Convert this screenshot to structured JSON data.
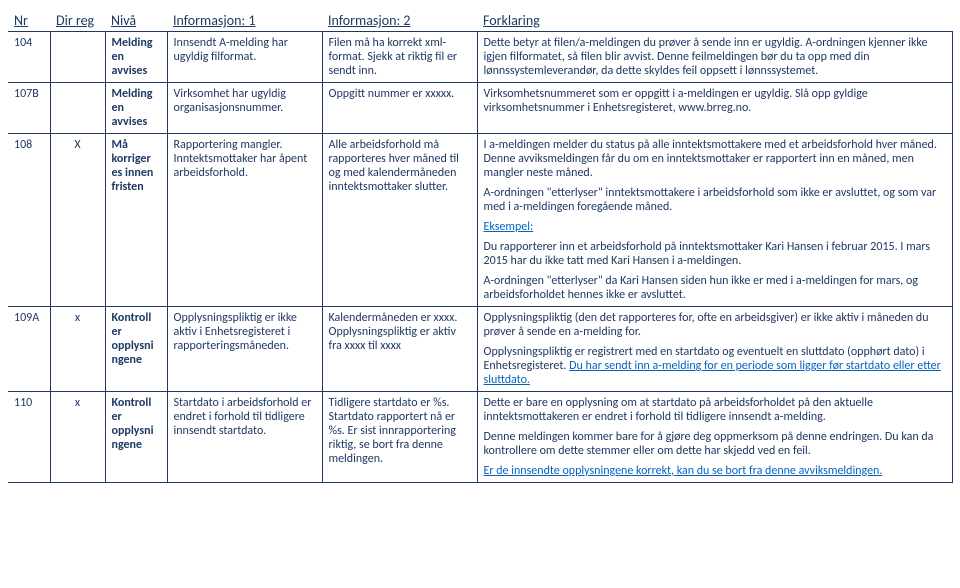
{
  "colors": {
    "text": "#1f3864",
    "border": "#1f3864",
    "accent": "#0563c1",
    "background": "#ffffff"
  },
  "typography": {
    "font_family": "Calibri, Arial, sans-serif",
    "body_size_pt": 9,
    "header_size_pt": 11
  },
  "headers": {
    "nr": "Nr",
    "dir_reg": "Dir reg",
    "niva": "Nivå",
    "info1": "Informasjon: 1",
    "info2": "Informasjon: 2",
    "forklaring": "Forklaring"
  },
  "rows": [
    {
      "nr": "104",
      "dir_reg": "",
      "niva": "Melding en avvises",
      "info1": "Innsendt A-melding har ugyldig filformat.",
      "info2": "Filen må ha korrekt xml-format. Sjekk at riktig fil er sendt inn.",
      "forklaring": [
        "Dette betyr at filen/a-meldingen du prøver å sende inn er ugyldig. A-ordningen kjenner ikke igjen filformatet, så filen blir avvist. Denne feilmeldingen bør du ta opp med din lønnssystemleverandør, da dette skyldes feil oppsett i lønnssystemet."
      ]
    },
    {
      "nr": "107B",
      "dir_reg": "",
      "niva": "Melding en avvises",
      "info1": "Virksomhet har ugyldig organisasjonsnummer.",
      "info2": "Oppgitt nummer er xxxxx.",
      "forklaring": [
        "Virksomhetsnummeret som er oppgitt i a-meldingen er ugyldig. Slå opp gyldige virksomhetsnummer i Enhetsregisteret, www.brreg.no."
      ]
    },
    {
      "nr": "108",
      "dir_reg": "X",
      "niva": "Må korriger es innen fristen",
      "info1": "Rapportering mangler. Inntektsmottaker har åpent arbeidsforhold.",
      "info2": "Alle arbeidsforhold må rapporteres hver måned til og med kalendermåneden inntektsmottaker slutter.",
      "forklaring": [
        "I a-meldingen melder du status på alle inntektsmottakere med et arbeidsforhold hver måned. Denne avviksmeldingen får du om en inntektsmottaker er rapportert inn en måned, men mangler neste måned.",
        "A-ordningen \"etterlyser\" inntektsmottakere i arbeidsforhold som ikke er avsluttet, og som var med i a-meldingen foregående måned.",
        "<span class=\"blue-link\">Eksempel:</span>",
        "Du rapporterer inn et arbeidsforhold på inntektsmottaker Kari Hansen i februar 2015. I mars 2015 har du ikke tatt med Kari Hansen i a-meldingen.",
        "A-ordningen \"etterlyser\" da Kari Hansen siden hun ikke er med i a-meldingen for mars, og arbeidsforholdet hennes ikke er avsluttet."
      ]
    },
    {
      "nr": "109A",
      "dir_reg": "x",
      "niva": "Kontroll er opplysni ngene",
      "info1": "Opplysningspliktig er ikke aktiv i Enhetsregisteret i rapporteringsmåneden.",
      "info2": "Kalendermåneden er xxxx. Opplysningspliktig er aktiv fra xxxx til xxxx",
      "forklaring": [
        "Opplysningspliktig (den det rapporteres for, ofte en arbeidsgiver) er ikke aktiv i måneden du prøver å sende en a-melding for.",
        "Opplysningspliktig er registrert med en startdato og eventuelt en sluttdato (opphørt dato) i Enhetsregisteret. <span class=\"blue-link\">Du har sendt inn a-melding for en periode som ligger før startdato eller etter sluttdato.</span>"
      ]
    },
    {
      "nr": "110",
      "dir_reg": "x",
      "niva": "Kontroll er opplysni ngene",
      "info1": "Startdato i arbeidsforhold er endret i forhold til tidligere innsendt startdato.",
      "info2": "Tidligere startdato er %s. Startdato rapportert nå er %s. Er sist innrapportering riktig, se bort fra denne meldingen.",
      "forklaring": [
        "Dette er bare en opplysning om at startdato på arbeidsforholdet på den aktuelle inntektsmottakeren er endret i forhold til tidligere innsendt a-melding.",
        "Denne meldingen kommer bare for å gjøre deg oppmerksom på denne endringen. Du kan da kontrollere om dette stemmer eller om dette har skjedd ved en feil.",
        "<span class=\"blue-link\">Er de innsendte opplysningene korrekt, kan du se bort fra denne avviksmeldingen.</span>"
      ]
    }
  ]
}
